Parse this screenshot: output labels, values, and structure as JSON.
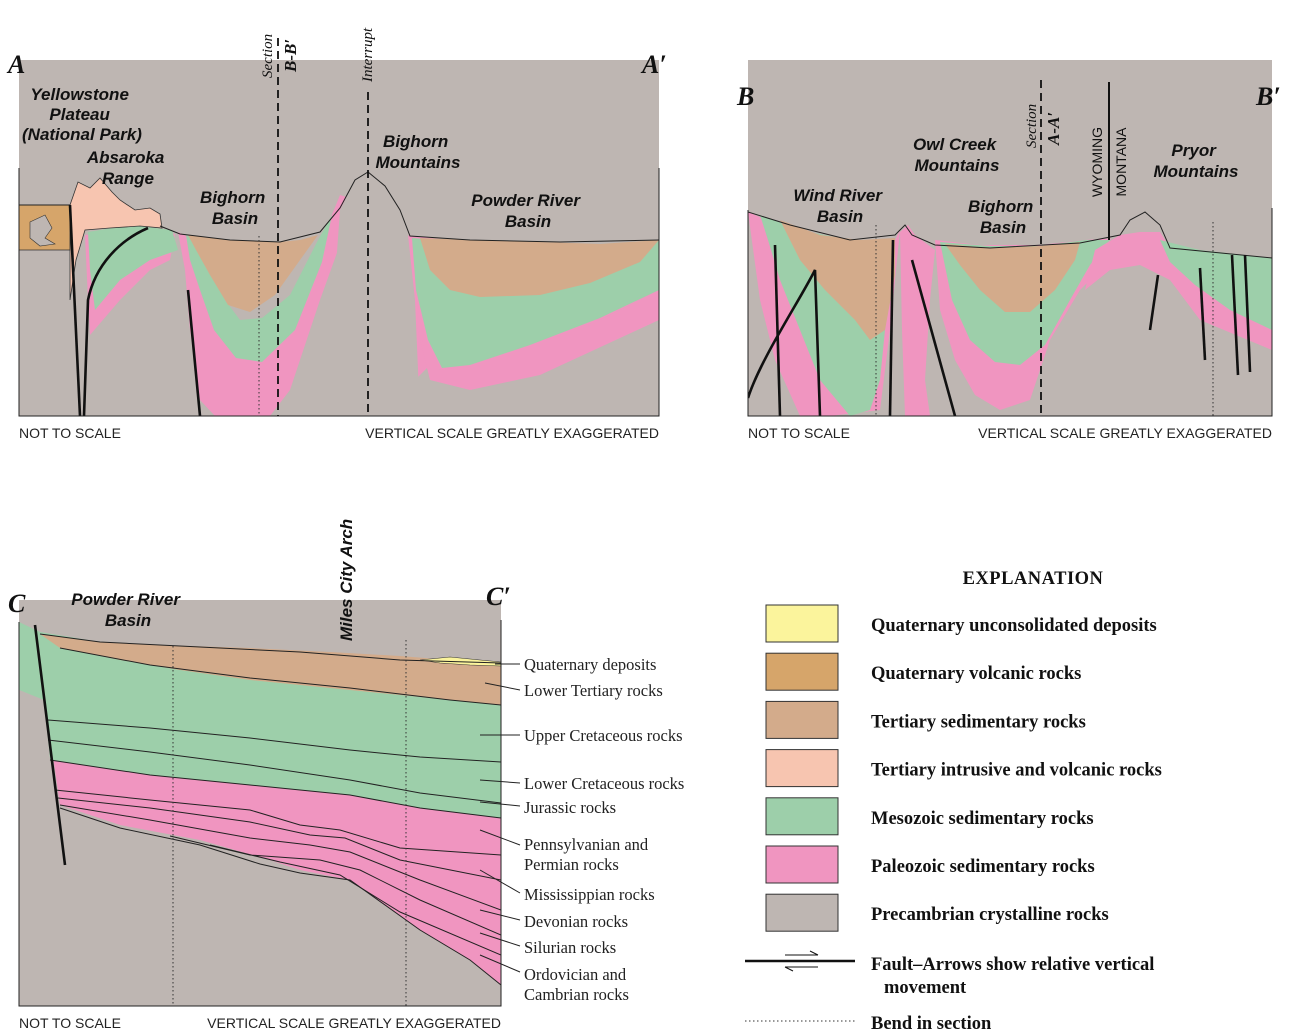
{
  "colors": {
    "quaternary_deposits": "#FBF49C",
    "quaternary_volcanic": "#D6A56A",
    "tertiary_sedimentary": "#D3AB8B",
    "tertiary_intrusive": "#F7C5B0",
    "mesozoic": "#9DCFAA",
    "paleozoic": "#F095C0",
    "precambrian": "#BEB6B2"
  },
  "panel_a": {
    "end_left": "A",
    "end_right": "A′",
    "labels": {
      "yellowstone": [
        "Yellowstone",
        "Plateau",
        "(National Park)"
      ],
      "absaroka": [
        "Absaroka",
        "Range"
      ],
      "bighorn_basin": [
        "Bighorn",
        "Basin"
      ],
      "bighorn_mountains": [
        "Bighorn",
        "Mountains"
      ],
      "powder_river": [
        "Powder River",
        "Basin"
      ]
    },
    "section_word": "Section",
    "section_ref": "B-B′",
    "interrupt": "Interrupt",
    "note_left": "NOT TO SCALE",
    "note_right": "VERTICAL SCALE GREATLY EXAGGERATED"
  },
  "panel_b": {
    "end_left": "B",
    "end_right": "B′",
    "labels": {
      "wind_river": [
        "Wind River",
        "Basin"
      ],
      "owl_creek": [
        "Owl Creek",
        "Mountains"
      ],
      "bighorn_basin": [
        "Bighorn",
        "Basin"
      ],
      "pryor": [
        "Pryor",
        "Mountains"
      ]
    },
    "section_word": "Section",
    "section_ref": "A-A′",
    "state_top": "WYOMING",
    "state_bottom": "MONTANA",
    "note_left": "NOT TO SCALE",
    "note_right": "VERTICAL SCALE GREATLY EXAGGERATED"
  },
  "panel_c": {
    "end_left": "C",
    "end_right": "C′",
    "labels": {
      "powder_river": [
        "Powder River",
        "Basin"
      ],
      "miles_city": "Miles City Arch"
    },
    "units": [
      [
        "Quaternary deposits"
      ],
      [
        "Lower Tertiary rocks"
      ],
      [
        "Upper Cretaceous rocks"
      ],
      [
        "Lower Cretaceous rocks"
      ],
      [
        "Jurassic rocks"
      ],
      [
        "Pennsylvanian and",
        "Permian rocks"
      ],
      [
        "Mississippian rocks"
      ],
      [
        "Devonian rocks"
      ],
      [
        "Silurian rocks"
      ],
      [
        "Ordovician and",
        "Cambrian rocks"
      ]
    ],
    "note_left": "NOT TO SCALE",
    "note_right": "VERTICAL SCALE GREATLY EXAGGERATED"
  },
  "legend": {
    "title": "EXPLANATION",
    "items": [
      {
        "label": "Quaternary unconsolidated deposits",
        "color": "#FBF49C"
      },
      {
        "label": "Quaternary volcanic rocks",
        "color": "#D6A56A"
      },
      {
        "label": "Tertiary sedimentary rocks",
        "color": "#D3AB8B"
      },
      {
        "label": "Tertiary intrusive and volcanic rocks",
        "color": "#F7C5B0"
      },
      {
        "label": "Mesozoic sedimentary rocks",
        "color": "#9DCFAA"
      },
      {
        "label": "Paleozoic sedimentary rocks",
        "color": "#F095C0"
      },
      {
        "label": "Precambrian crystalline rocks",
        "color": "#BEB6B2"
      }
    ],
    "fault_label": [
      "Fault–Arrows show relative vertical",
      "movement"
    ],
    "bend_label": "Bend in section"
  }
}
